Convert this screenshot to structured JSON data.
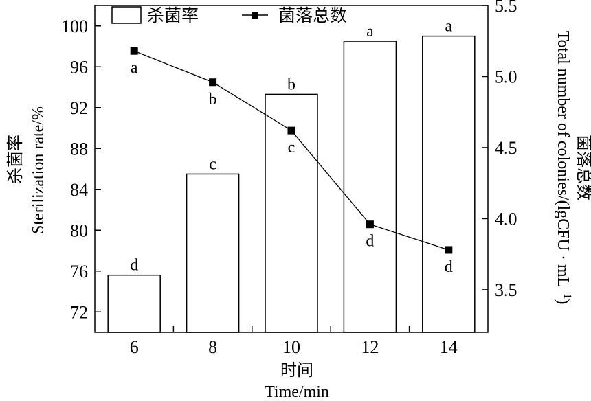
{
  "chart_data": {
    "type": "bar+line",
    "categories": [
      "6",
      "8",
      "10",
      "12",
      "14"
    ],
    "bar_series": {
      "name": "杀菌率",
      "values": [
        75.6,
        85.5,
        93.3,
        98.5,
        99.0
      ],
      "labels": [
        "d",
        "c",
        "b",
        "a",
        "a"
      ]
    },
    "line_series": {
      "name": "菌落总数",
      "values": [
        5.18,
        4.96,
        4.62,
        3.96,
        3.78
      ],
      "labels": [
        "a",
        "b",
        "c",
        "d",
        "d"
      ]
    },
    "xlabel_zh": "时间",
    "xlabel_en": "Time/min",
    "ylabel_left_zh": "杀菌率",
    "ylabel_left_en": "Sterilization rate/%",
    "ylabel_right_en": "Total number of colonies/(lgCFU · mL",
    "ylabel_right_sup": "−1",
    "ylabel_right_close": ")",
    "ylabel_right_zh": "菌落总数",
    "left_axis": {
      "min": 70,
      "max": 102,
      "ticks": [
        72,
        76,
        80,
        84,
        88,
        92,
        96,
        100
      ]
    },
    "right_axis": {
      "min": 3.2,
      "max": 5.5,
      "ticks": [
        "3.5",
        "4.0",
        "4.5",
        "5.0",
        "5.5"
      ]
    },
    "legend_position": "top-left"
  }
}
